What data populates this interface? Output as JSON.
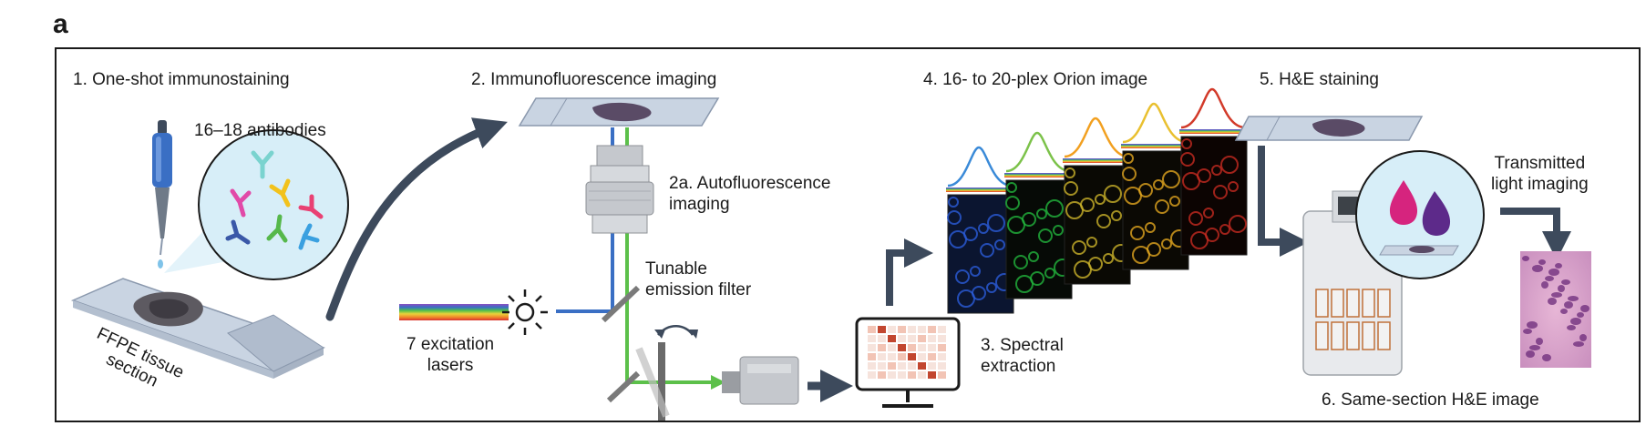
{
  "panel_letter": "a",
  "steps": {
    "s1_title": "1. One-shot immunostaining",
    "s1_antibodies": "16–18 antibodies",
    "s1_tissue_line1": "FFPE tissue",
    "s1_tissue_line2": "section",
    "s2_title": "2. Immunofluorescence imaging",
    "s2a_line1": "2a. Autofluorescence",
    "s2a_line2": "imaging",
    "filter_line1": "Tunable",
    "filter_line2": "emission filter",
    "lasers_line1": "7 excitation",
    "lasers_line2": "lasers",
    "s3_line1": "3. Spectral",
    "s3_line2": "extraction",
    "s4_title": "4. 16- to 20-plex Orion image",
    "s5_title": "5. H&E staining",
    "transmit_line1": "Transmitted",
    "transmit_line2": "light imaging",
    "s6_title": "6. Same-section H&E image"
  },
  "icons": [
    "pipette-icon",
    "antibody-cluster-icon",
    "tissue-slide-icon",
    "microscope-objective-icon",
    "light-source-icon",
    "mirror-icon",
    "camera-icon",
    "computer-monitor-icon",
    "spectral-channel-stack-icon",
    "stainer-instrument-icon",
    "stain-drops-icon",
    "he-image-icon"
  ],
  "colors": {
    "arrow": "#3d4a5c",
    "blue_beam": "#3a6fc4",
    "green_beam": "#5cc04a",
    "slide": "#c9d4e2",
    "tissue": "#5a4b66",
    "circle_fill": "#d7eef8"
  }
}
